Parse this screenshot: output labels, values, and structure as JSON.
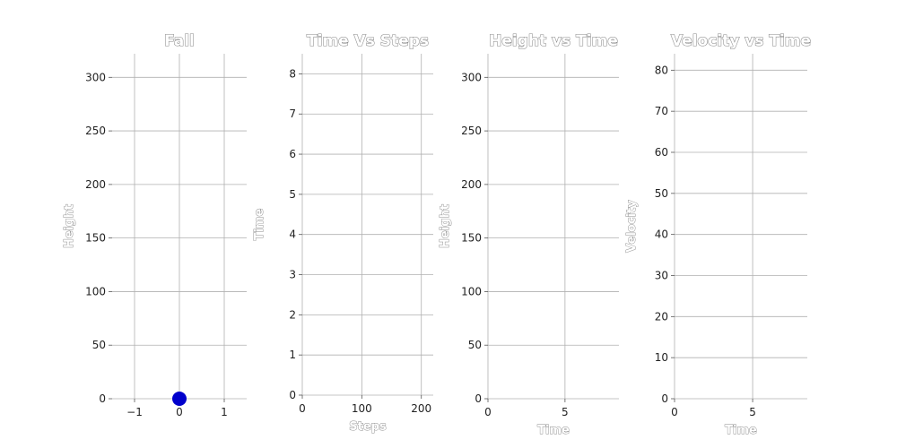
{
  "chart_data": [
    {
      "type": "scatter",
      "title": "Fall",
      "xlabel": "",
      "ylabel": "Height",
      "xlim": [
        -1.5,
        1.5
      ],
      "ylim": [
        0,
        322
      ],
      "xticks": [
        -1,
        0,
        1
      ],
      "yticks": [
        0,
        50,
        100,
        150,
        200,
        250,
        300
      ],
      "points": [
        {
          "x": 0,
          "y": 0
        }
      ],
      "color": "#0000cc",
      "grid": true
    },
    {
      "type": "line",
      "title": "Time Vs Steps",
      "xlabel": "Steps",
      "ylabel": "Time",
      "xlim": [
        0,
        220
      ],
      "ylim": [
        0,
        8.5
      ],
      "xticks": [
        0,
        100,
        200
      ],
      "yticks": [
        0,
        1,
        2,
        3,
        4,
        5,
        6,
        7,
        8
      ],
      "series": [],
      "grid": true
    },
    {
      "type": "line",
      "title": "Height vs Time",
      "xlabel": "Time",
      "ylabel": "Height",
      "xlim": [
        0,
        8.5
      ],
      "ylim": [
        0,
        322
      ],
      "xticks": [
        0,
        5
      ],
      "yticks": [
        0,
        50,
        100,
        150,
        200,
        250,
        300
      ],
      "series": [],
      "grid": true
    },
    {
      "type": "line",
      "title": "Velocity vs Time",
      "xlabel": "Time",
      "ylabel": "Velocity",
      "xlim": [
        0,
        8.5
      ],
      "ylim": [
        0,
        84
      ],
      "xticks": [
        0,
        5
      ],
      "yticks": [
        0,
        10,
        20,
        30,
        40,
        50,
        60,
        70,
        80
      ],
      "series": [],
      "grid": true
    }
  ]
}
